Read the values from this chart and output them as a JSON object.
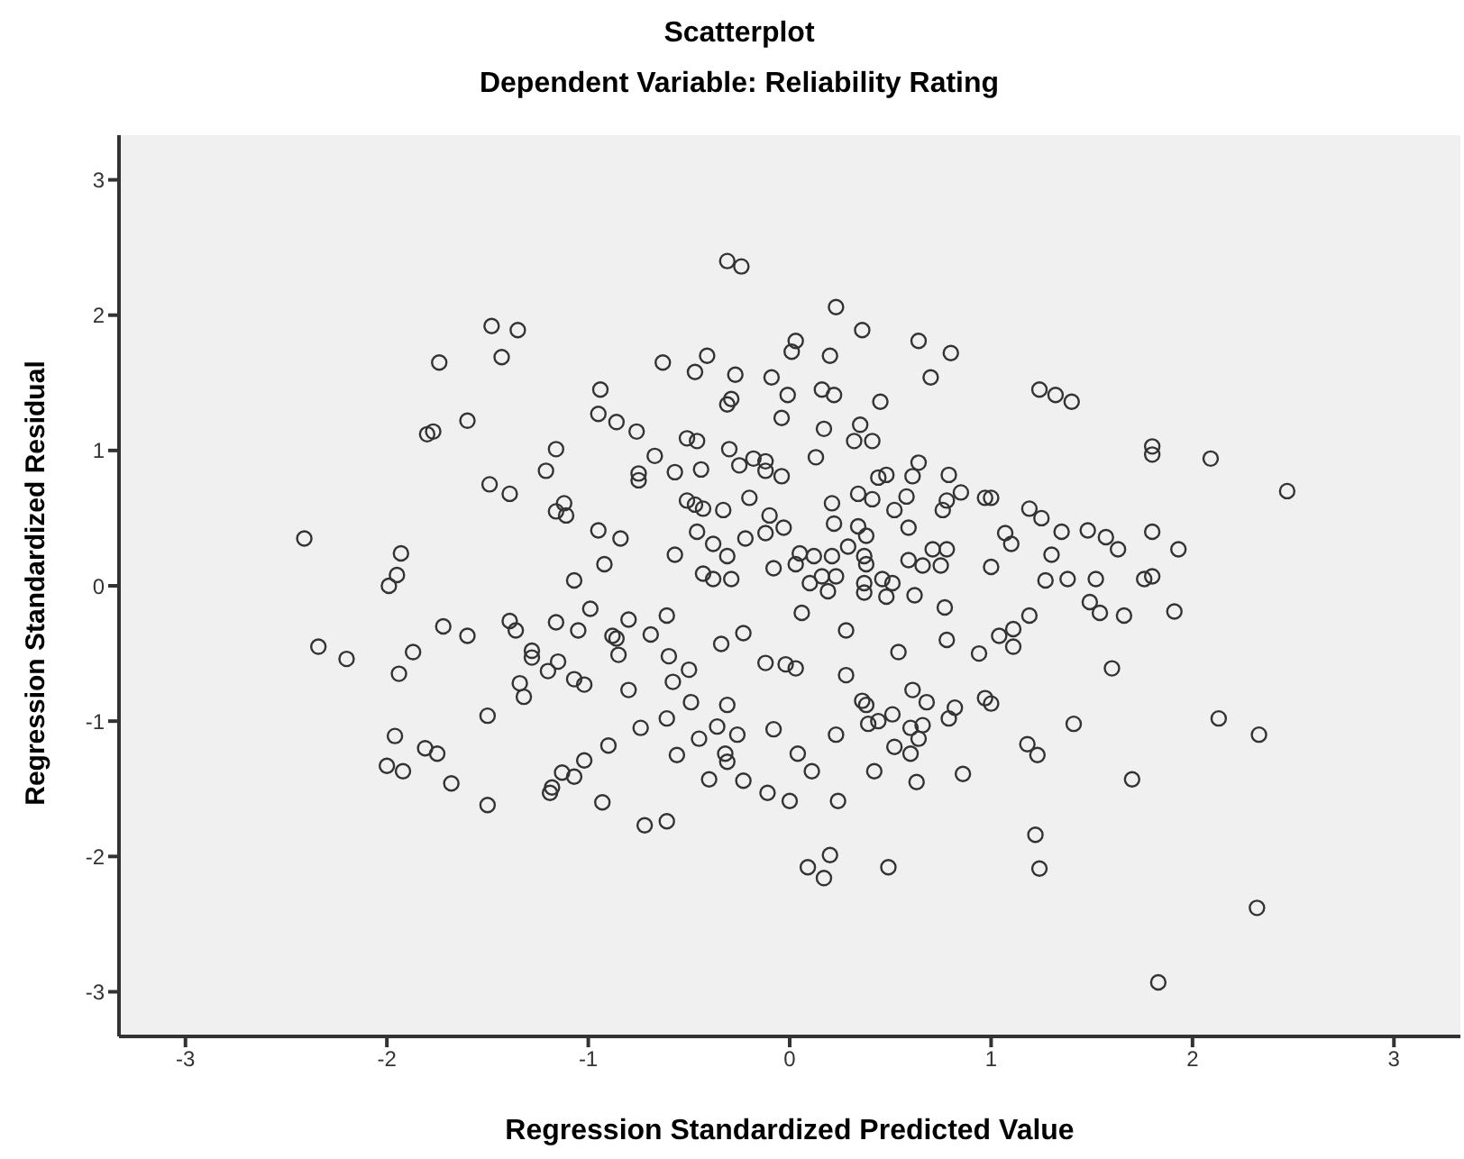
{
  "chart_data": {
    "type": "scatter",
    "title": "Scatterplot",
    "subtitle": "Dependent Variable: Reliability Rating",
    "xlabel": "Regression Standardized Predicted Value",
    "ylabel": "Regression Standardized Residual",
    "xlim": [
      -3.33,
      3.33
    ],
    "ylim": [
      -3.33,
      3.33
    ],
    "xticks": [
      -3,
      -2,
      -1,
      0,
      1,
      2,
      3
    ],
    "yticks": [
      -3,
      -2,
      -1,
      0,
      1,
      2,
      3
    ],
    "marker": "circle",
    "series": [
      {
        "color": "#333333",
        "x": [
          -2.41,
          -1.93,
          -1.95,
          -1.99,
          -2.34,
          -2.2,
          -1.94,
          -1.87,
          -1.72,
          -1.6,
          -1.39,
          -1.36,
          -1.28,
          -1.28,
          -1.34,
          -1.32,
          -1.5,
          -1.96,
          -1.81,
          -1.75,
          -2.0,
          -1.92,
          -1.68,
          -1.5,
          -1.48,
          -1.35,
          -1.43,
          -1.74,
          -1.6,
          -1.8,
          -1.77,
          -1.49,
          -1.39,
          -0.31,
          -0.24,
          0.23,
          0.36,
          0.64,
          0.8,
          0.03,
          0.01,
          0.2,
          0.7,
          -0.63,
          -0.41,
          -0.47,
          -0.27,
          -0.09,
          -0.01,
          0.16,
          0.22,
          0.45,
          -0.29,
          -0.31,
          -0.04,
          -0.94,
          -0.95,
          -0.86,
          -0.76,
          0.17,
          0.35,
          0.32,
          0.41,
          0.13,
          -0.51,
          -0.46,
          -0.3,
          -1.16,
          -1.21,
          -0.67,
          -0.57,
          -0.44,
          -0.25,
          -0.18,
          -0.12,
          -0.12,
          -0.04,
          -0.75,
          -0.75,
          -1.16,
          -1.12,
          -1.11,
          -0.95,
          -0.92,
          -1.07,
          -0.84,
          -0.51,
          -0.47,
          -0.43,
          -0.33,
          -0.2,
          -0.1,
          -0.03,
          -0.12,
          -0.22,
          -0.46,
          -0.38,
          -0.31,
          -0.57,
          -0.43,
          -0.38,
          -0.29,
          -0.08,
          0.03,
          0.05,
          0.12,
          0.21,
          0.16,
          0.23,
          0.29,
          0.34,
          0.38,
          0.37,
          0.38,
          0.46,
          0.21,
          0.22,
          0.34,
          0.41,
          0.52,
          0.59,
          0.58,
          0.61,
          0.64,
          0.44,
          0.48,
          0.79,
          0.85,
          0.78,
          0.76,
          0.71,
          0.78,
          0.75,
          0.59,
          0.66,
          0.97,
          1.24,
          1.32,
          1.4,
          1.8,
          1.8,
          2.09,
          2.47,
          1.0,
          1.19,
          1.25,
          1.07,
          1.1,
          1.35,
          1.48,
          1.57,
          1.63,
          1.8,
          1.93,
          1.3,
          1.0,
          1.27,
          1.38,
          1.52,
          1.76,
          1.8,
          1.49,
          1.54,
          1.66,
          1.91,
          1.19,
          1.11,
          1.04,
          1.11,
          0.94,
          1.6,
          0.97,
          1.0,
          1.41,
          2.13,
          2.33,
          1.18,
          1.23,
          1.7,
          1.22,
          1.24,
          2.32,
          1.83,
          -0.99,
          -1.16,
          -1.05,
          -1.15,
          -1.2,
          -1.07,
          -1.02,
          -0.88,
          -0.86,
          -0.85,
          -0.8,
          -0.69,
          -0.61,
          -0.6,
          -0.58,
          -0.5,
          -0.8,
          -0.34,
          -0.23,
          -0.12,
          -0.02,
          0.03,
          0.06,
          0.28,
          0.28,
          0.54,
          0.77,
          0.78,
          0.62,
          -0.49,
          -0.31,
          -0.61,
          -0.74,
          -0.36,
          -0.26,
          -0.45,
          -0.08,
          -0.9,
          -1.02,
          -1.13,
          -1.07,
          -1.18,
          -1.19,
          -0.93,
          -0.56,
          -0.32,
          -0.31,
          -0.4,
          -0.23,
          -0.11,
          0.0,
          0.04,
          0.11,
          0.23,
          0.24,
          0.42,
          0.36,
          0.38,
          0.39,
          0.44,
          0.51,
          0.61,
          0.68,
          0.6,
          0.66,
          0.64,
          0.52,
          0.6,
          0.63,
          0.79,
          0.82,
          0.86,
          -0.72,
          -0.61,
          0.09,
          0.2,
          0.17,
          0.49,
          0.1,
          0.19,
          0.37,
          0.37,
          0.48,
          0.51
        ],
        "values": [
          0.35,
          0.24,
          0.08,
          0.0,
          -0.45,
          -0.54,
          -0.65,
          -0.49,
          -0.3,
          -0.37,
          -0.26,
          -0.33,
          -0.48,
          -0.53,
          -0.72,
          -0.82,
          -0.96,
          -1.11,
          -1.2,
          -1.24,
          -1.33,
          -1.37,
          -1.46,
          -1.62,
          1.92,
          1.89,
          1.69,
          1.65,
          1.22,
          1.12,
          1.14,
          0.75,
          0.68,
          2.4,
          2.36,
          2.06,
          1.89,
          1.81,
          1.72,
          1.81,
          1.73,
          1.7,
          1.54,
          1.65,
          1.7,
          1.58,
          1.56,
          1.54,
          1.41,
          1.45,
          1.41,
          1.36,
          1.38,
          1.34,
          1.24,
          1.45,
          1.27,
          1.21,
          1.14,
          1.16,
          1.19,
          1.07,
          1.07,
          0.95,
          1.09,
          1.07,
          1.01,
          1.01,
          0.85,
          0.96,
          0.84,
          0.86,
          0.89,
          0.94,
          0.92,
          0.85,
          0.81,
          0.83,
          0.78,
          0.55,
          0.61,
          0.52,
          0.41,
          0.16,
          0.04,
          0.35,
          0.63,
          0.6,
          0.57,
          0.56,
          0.65,
          0.52,
          0.43,
          0.39,
          0.35,
          0.4,
          0.31,
          0.22,
          0.23,
          0.09,
          0.05,
          0.05,
          0.13,
          0.16,
          0.24,
          0.22,
          0.22,
          0.07,
          0.07,
          0.29,
          0.44,
          0.37,
          0.22,
          0.16,
          0.05,
          0.61,
          0.46,
          0.68,
          0.64,
          0.56,
          0.43,
          0.66,
          0.81,
          0.91,
          0.8,
          0.82,
          0.82,
          0.69,
          0.63,
          0.56,
          0.27,
          0.27,
          0.15,
          0.19,
          0.15,
          0.65,
          1.45,
          1.41,
          1.36,
          1.03,
          0.97,
          0.94,
          0.7,
          0.65,
          0.57,
          0.5,
          0.39,
          0.31,
          0.4,
          0.41,
          0.36,
          0.27,
          0.4,
          0.27,
          0.23,
          0.14,
          0.04,
          0.05,
          0.05,
          0.05,
          0.07,
          -0.12,
          -0.2,
          -0.22,
          -0.19,
          -0.22,
          -0.32,
          -0.37,
          -0.45,
          -0.5,
          -0.61,
          -0.83,
          -0.87,
          -1.02,
          -0.98,
          -1.1,
          -1.17,
          -1.25,
          -1.43,
          -1.84,
          -2.09,
          -2.38,
          -2.93,
          -0.17,
          -0.27,
          -0.33,
          -0.56,
          -0.63,
          -0.69,
          -0.73,
          -0.37,
          -0.39,
          -0.51,
          -0.25,
          -0.36,
          -0.22,
          -0.52,
          -0.71,
          -0.62,
          -0.77,
          -0.43,
          -0.35,
          -0.57,
          -0.58,
          -0.61,
          -0.2,
          -0.33,
          -0.66,
          -0.49,
          -0.16,
          -0.4,
          -0.07,
          -0.86,
          -0.88,
          -0.98,
          -1.05,
          -1.04,
          -1.1,
          -1.13,
          -1.06,
          -1.18,
          -1.29,
          -1.38,
          -1.41,
          -1.49,
          -1.53,
          -1.6,
          -1.25,
          -1.24,
          -1.3,
          -1.43,
          -1.44,
          -1.53,
          -1.59,
          -1.24,
          -1.37,
          -1.1,
          -1.59,
          -1.37,
          -0.85,
          -0.88,
          -1.02,
          -1.0,
          -0.95,
          -0.77,
          -0.86,
          -1.05,
          -1.03,
          -1.13,
          -1.19,
          -1.24,
          -1.45,
          -0.98,
          -0.9,
          -1.39,
          -1.77,
          -1.74,
          -2.08,
          -1.99,
          -2.16,
          -2.08,
          0.02,
          -0.04,
          -0.05,
          0.02,
          -0.08,
          0.02
        ]
      }
    ]
  }
}
